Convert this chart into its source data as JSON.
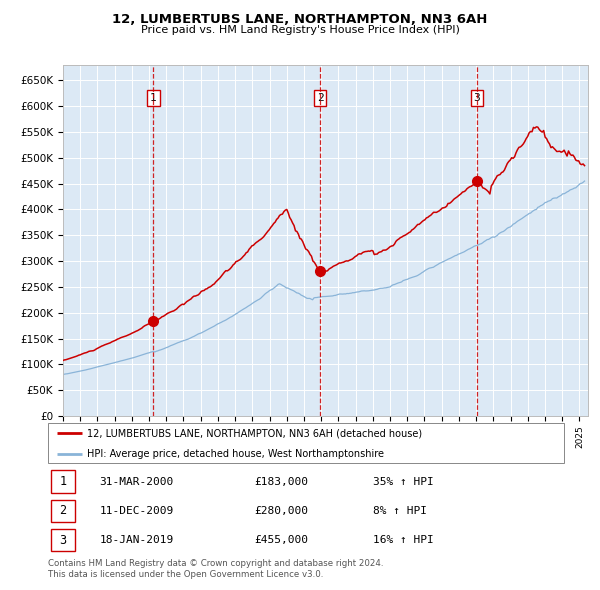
{
  "title": "12, LUMBERTUBS LANE, NORTHAMPTON, NN3 6AH",
  "subtitle": "Price paid vs. HM Land Registry's House Price Index (HPI)",
  "background_color": "#ffffff",
  "plot_bg_color": "#dce9f5",
  "red_line_color": "#cc0000",
  "blue_line_color": "#8ab4d8",
  "grid_color": "#ffffff",
  "vline_color": "#cc0000",
  "ylim": [
    0,
    680000
  ],
  "yticks": [
    0,
    50000,
    100000,
    150000,
    200000,
    250000,
    300000,
    350000,
    400000,
    450000,
    500000,
    550000,
    600000,
    650000
  ],
  "ytick_labels": [
    "£0",
    "£50K",
    "£100K",
    "£150K",
    "£200K",
    "£250K",
    "£300K",
    "£350K",
    "£400K",
    "£450K",
    "£500K",
    "£550K",
    "£600K",
    "£650K"
  ],
  "xlim_start": 1995.0,
  "xlim_end": 2025.5,
  "purchases": [
    {
      "date_num": 2000.25,
      "price": 183000,
      "label": "1"
    },
    {
      "date_num": 2009.94,
      "price": 280000,
      "label": "2"
    },
    {
      "date_num": 2019.05,
      "price": 455000,
      "label": "3"
    }
  ],
  "legend_entries": [
    {
      "label": "12, LUMBERTUBS LANE, NORTHAMPTON, NN3 6AH (detached house)",
      "color": "#cc0000"
    },
    {
      "label": "HPI: Average price, detached house, West Northamptonshire",
      "color": "#8ab4d8"
    }
  ],
  "table_rows": [
    {
      "num": "1",
      "date": "31-MAR-2000",
      "price": "£183,000",
      "change": "35% ↑ HPI"
    },
    {
      "num": "2",
      "date": "11-DEC-2009",
      "price": "£280,000",
      "change": "8% ↑ HPI"
    },
    {
      "num": "3",
      "date": "18-JAN-2019",
      "price": "£455,000",
      "change": "16% ↑ HPI"
    }
  ],
  "footer": "Contains HM Land Registry data © Crown copyright and database right 2024.\nThis data is licensed under the Open Government Licence v3.0."
}
